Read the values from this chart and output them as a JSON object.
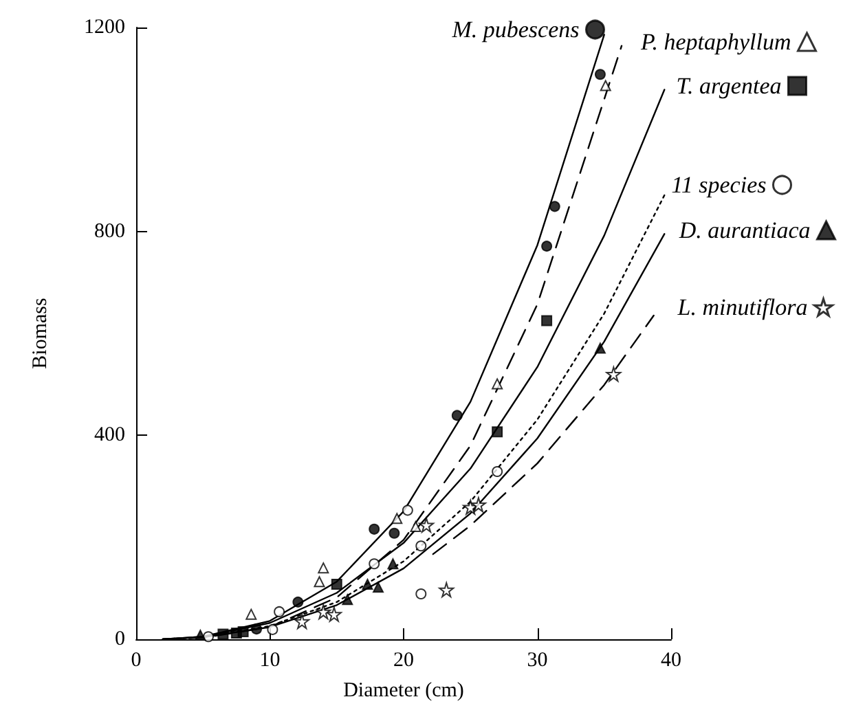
{
  "chart_data": {
    "type": "scatter",
    "xlabel": "Diameter (cm)",
    "ylabel": "Biomass",
    "xlim": [
      0,
      40
    ],
    "xticks": [
      0,
      10,
      20,
      30,
      40
    ],
    "ylim": [
      0,
      1200
    ],
    "yticks": [
      0,
      400,
      800,
      1200
    ],
    "grid": false,
    "legend": "top right",
    "series": [
      {
        "name": "M. pubescens",
        "color": "#000000",
        "marker": "circle",
        "x": [
          34.7,
          31.3,
          30.7,
          24.0,
          17.8,
          19.3,
          12.1,
          9.0
        ],
        "values": [
          1108,
          849,
          771,
          439,
          216,
          208,
          73,
          20
        ]
      },
      {
        "name": "P. heptaphyllum",
        "color": "#ffffff",
        "marker": "triangle",
        "x": [
          35.1,
          27.0,
          19.5,
          20.9,
          14.0,
          13.7,
          8.6
        ],
        "values": [
          1086,
          501,
          237,
          221,
          140,
          113,
          49
        ]
      },
      {
        "name": "T. argentea",
        "color": "#000000",
        "marker": "square",
        "x": [
          30.7,
          27.0,
          15.0,
          6.5,
          7.5,
          8.0
        ],
        "values": [
          625,
          407,
          108,
          10,
          12,
          15
        ]
      },
      {
        "name": "11 species",
        "color": "#ffffff",
        "marker": "circle",
        "x": [
          27.0,
          20.3,
          21.3,
          17.8,
          21.3,
          10.7,
          10.2,
          5.4
        ],
        "values": [
          329,
          253,
          183,
          148,
          89,
          54,
          19,
          5
        ]
      },
      {
        "name": "D. aurantiaca",
        "color": "#000000",
        "marker": "triangle",
        "x": [
          34.7,
          19.2,
          17.3,
          18.1,
          15.8,
          4.8
        ],
        "values": [
          571,
          148,
          108,
          102,
          78,
          8
        ]
      },
      {
        "name": "L. minutiflora",
        "color": "#ffffff",
        "marker": "star",
        "x": [
          35.7,
          25.0,
          25.6,
          21.7,
          23.2,
          14.8,
          14.0,
          12.4
        ],
        "values": [
          520,
          259,
          264,
          224,
          97,
          49,
          54,
          35
        ]
      },
      {
        "type": "line",
        "color": "#000000",
        "marker": "none",
        "line_style": "solid",
        "x": [
          2,
          5,
          10,
          15,
          20,
          25,
          30,
          35
        ],
        "values": [
          0,
          5,
          36,
          113,
          251,
          466,
          773,
          1186
        ]
      },
      {
        "type": "line",
        "color": "#000000",
        "marker": "none",
        "line_style": "dashed",
        "x": [
          2,
          5,
          10,
          15,
          20,
          25,
          30,
          36.3
        ],
        "values": [
          0,
          3,
          24,
          82,
          195,
          380,
          657,
          1164
        ]
      },
      {
        "type": "line",
        "color": "#000000",
        "marker": "none",
        "line_style": "solid",
        "x": [
          2,
          5,
          10,
          15,
          20,
          25,
          30,
          35,
          39.5
        ],
        "values": [
          0,
          5,
          32,
          91,
          189,
          335,
          534,
          792,
          1078
        ]
      },
      {
        "type": "line",
        "color": "#000000",
        "marker": "none",
        "line_style": "dotted",
        "x": [
          2,
          5,
          10,
          15,
          20,
          25,
          30,
          35,
          39.5
        ],
        "values": [
          0,
          4,
          26,
          73,
          153,
          270,
          431,
          639,
          871
        ]
      },
      {
        "type": "line",
        "color": "#000000",
        "marker": "none",
        "line_style": "solid",
        "x": [
          2,
          5,
          10,
          15,
          20,
          25,
          30,
          35,
          39.5
        ],
        "values": [
          0,
          4,
          24,
          67,
          139,
          247,
          394,
          584,
          795
        ]
      },
      {
        "type": "line",
        "color": "#000000",
        "marker": "none",
        "line_style": "dashed",
        "x": [
          22.2,
          25,
          30,
          35,
          38.7
        ],
        "values": [
          167,
          223,
          345,
          499,
          635
        ]
      }
    ]
  }
}
